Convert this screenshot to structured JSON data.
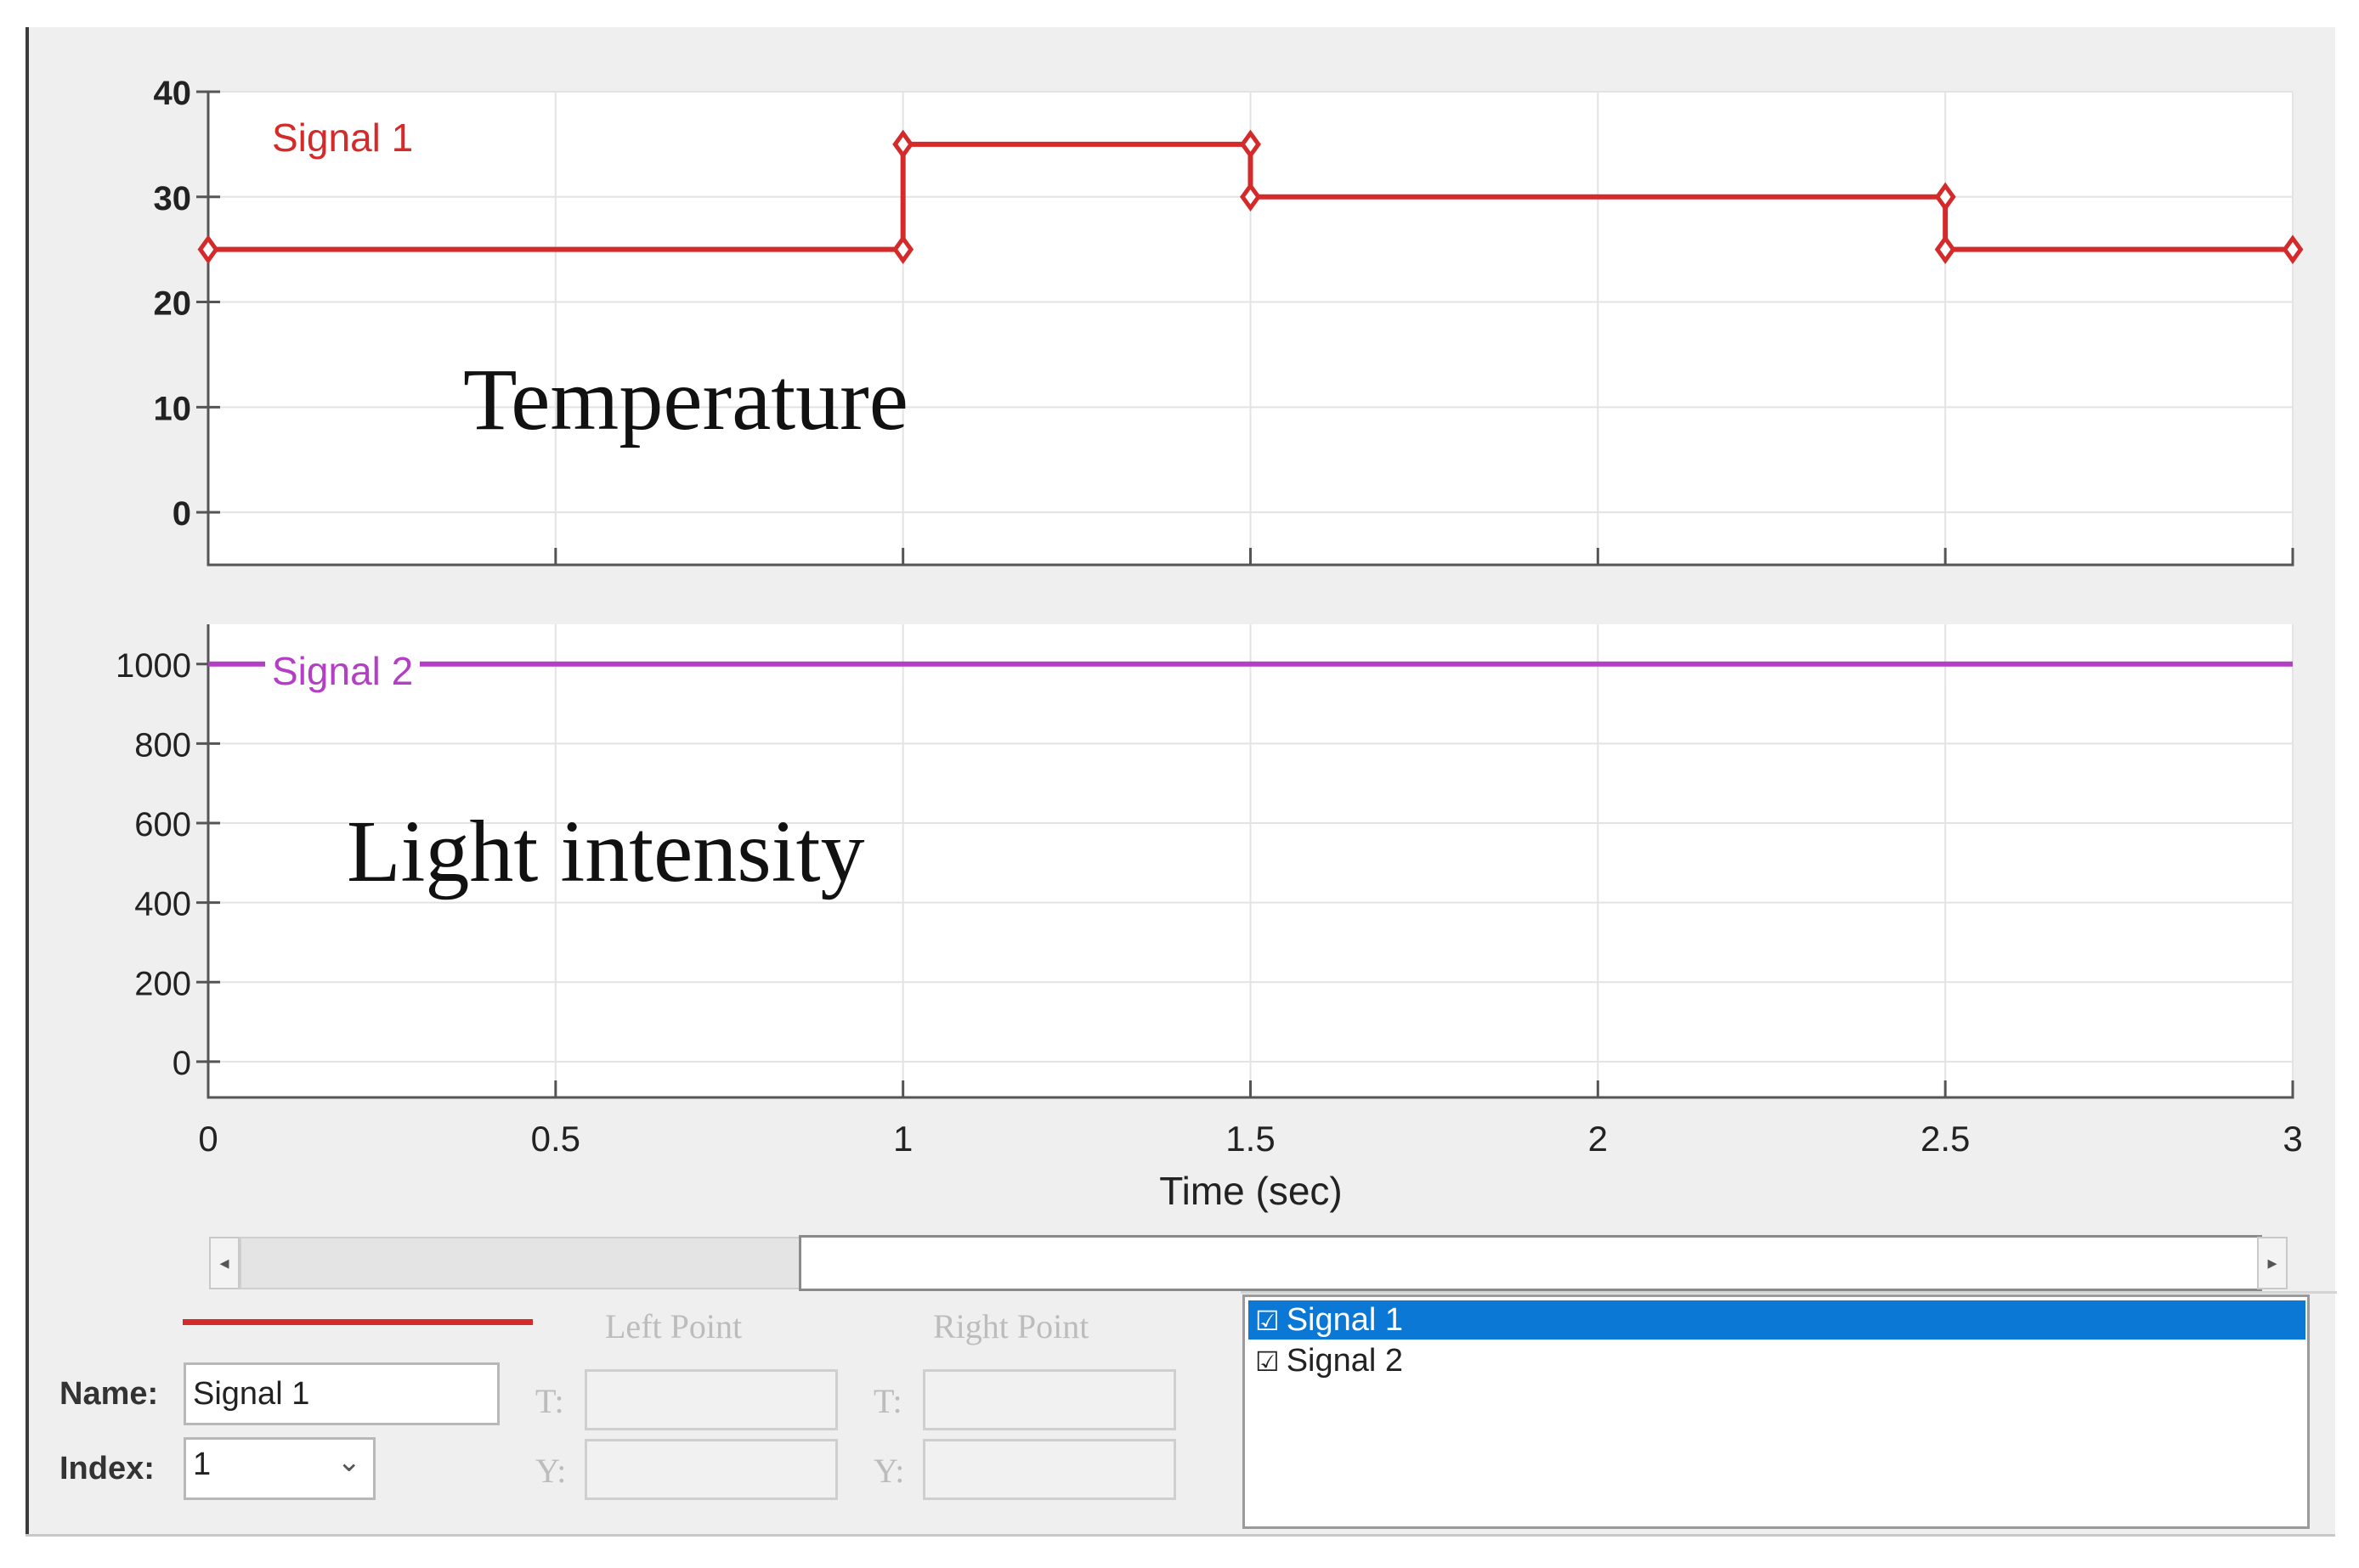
{
  "signals": {
    "list": [
      {
        "label": "Signal 1",
        "checked": true,
        "selected": true
      },
      {
        "label": "Signal 2",
        "checked": true,
        "selected": false
      }
    ]
  },
  "editor": {
    "name_label": "Name:",
    "name_value": "Signal 1",
    "index_label": "Index:",
    "index_value": "1",
    "left_point_label": "Left Point",
    "right_point_label": "Right Point",
    "t_label": "T:",
    "y_label": "Y:",
    "line_color": "#d42a2a"
  },
  "chart_data": [
    {
      "type": "line",
      "overlay_text": "Temperature",
      "series": [
        {
          "name": "Signal 1",
          "color": "#d42a2a",
          "step": true,
          "points": [
            [
              0,
              25
            ],
            [
              1,
              25
            ],
            [
              1,
              35
            ],
            [
              1.5,
              35
            ],
            [
              1.5,
              30
            ],
            [
              2.5,
              30
            ],
            [
              2.5,
              25
            ],
            [
              3,
              25
            ]
          ]
        }
      ],
      "yticks": [
        0,
        10,
        20,
        30,
        40
      ],
      "ylim": [
        -5,
        40
      ],
      "xlim": [
        0,
        3
      ],
      "grid": true
    },
    {
      "type": "line",
      "overlay_text": "Light intensity",
      "series": [
        {
          "name": "Signal 2",
          "color": "#b23fc4",
          "points": [
            [
              0,
              1000
            ],
            [
              3,
              1000
            ]
          ]
        }
      ],
      "yticks": [
        0,
        200,
        400,
        600,
        800,
        1000
      ],
      "ylim": [
        -90,
        1100
      ],
      "xlim": [
        0,
        3
      ],
      "grid": true
    }
  ],
  "xaxis": {
    "ticks": [
      0,
      0.5,
      1,
      1.5,
      2,
      2.5,
      3
    ],
    "tick_labels": [
      "0",
      "0.5",
      "1",
      "1.5",
      "2",
      "2.5",
      "3"
    ],
    "label": "Time (sec)"
  },
  "scrollbar": {
    "left_arrow": "◂",
    "right_arrow": "▸"
  }
}
